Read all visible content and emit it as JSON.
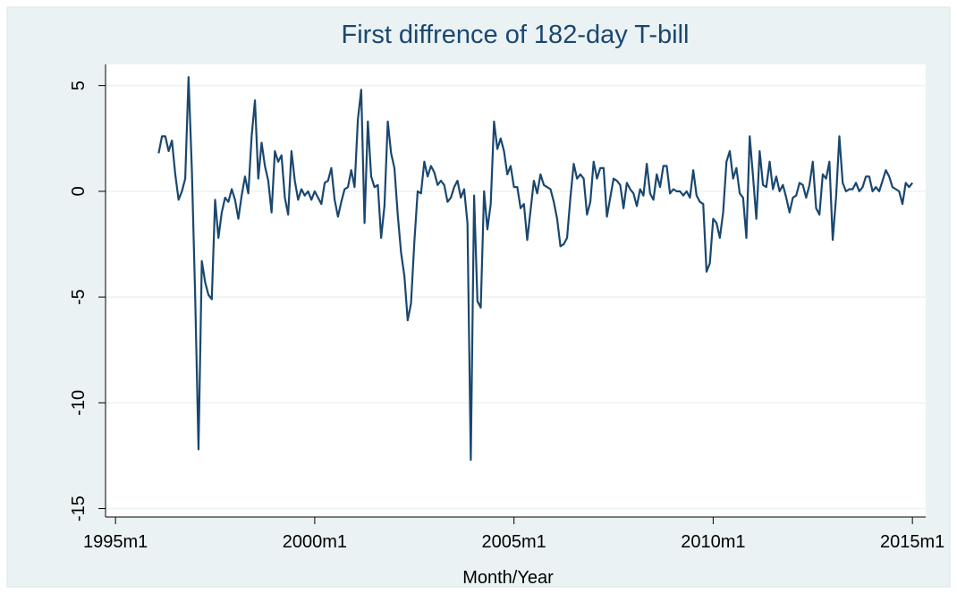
{
  "chart_data": {
    "type": "line",
    "title": "First diffrence of 182-day T-bill",
    "xlabel": "Month/Year",
    "color": "#1a476f",
    "grid": true,
    "xlim": [
      "1994m10",
      "2015m5"
    ],
    "xticks": [
      "1995m1",
      "2000m1",
      "2005m1",
      "2010m1",
      "2015m1"
    ],
    "ylim": [
      -15.4,
      6
    ],
    "yticks": [
      -15,
      -10,
      -5,
      0,
      5
    ],
    "x": [
      "1996m2",
      "1996m3",
      "1996m4",
      "1996m5",
      "1996m6",
      "1996m7",
      "1996m8",
      "1996m9",
      "1996m10",
      "1996m11",
      "1996m12",
      "1997m1",
      "1997m2",
      "1997m3",
      "1997m4",
      "1997m5",
      "1997m6",
      "1997m7",
      "1997m8",
      "1997m9",
      "1997m10",
      "1997m11",
      "1997m12",
      "1998m1",
      "1998m2",
      "1998m3",
      "1998m4",
      "1998m5",
      "1998m6",
      "1998m7",
      "1998m8",
      "1998m9",
      "1998m10",
      "1998m11",
      "1998m12",
      "1999m1",
      "1999m2",
      "1999m3",
      "1999m4",
      "1999m5",
      "1999m6",
      "1999m7",
      "1999m8",
      "1999m9",
      "1999m10",
      "1999m11",
      "1999m12",
      "2000m1",
      "2000m2",
      "2000m3",
      "2000m4",
      "2000m5",
      "2000m6",
      "2000m7",
      "2000m8",
      "2000m9",
      "2000m10",
      "2000m11",
      "2000m12",
      "2001m1",
      "2001m2",
      "2001m3",
      "2001m4",
      "2001m5",
      "2001m6",
      "2001m7",
      "2001m8",
      "2001m9",
      "2001m10",
      "2001m11",
      "2001m12",
      "2002m1",
      "2002m2",
      "2002m3",
      "2002m4",
      "2002m5",
      "2002m6",
      "2002m7",
      "2002m8",
      "2002m9",
      "2002m10",
      "2002m11",
      "2002m12",
      "2003m1",
      "2003m2",
      "2003m3",
      "2003m4",
      "2003m5",
      "2003m6",
      "2003m7",
      "2003m8",
      "2003m9",
      "2003m10",
      "2003m11",
      "2003m12",
      "2004m1",
      "2004m2",
      "2004m3",
      "2004m4",
      "2004m5",
      "2004m6",
      "2004m7",
      "2004m8",
      "2004m9",
      "2004m10",
      "2004m11",
      "2004m12",
      "2005m1",
      "2005m2",
      "2005m3",
      "2005m4",
      "2005m5",
      "2005m6",
      "2005m7",
      "2005m8",
      "2005m9",
      "2005m10",
      "2005m11",
      "2005m12",
      "2006m1",
      "2006m2",
      "2006m3",
      "2006m4",
      "2006m5",
      "2006m6",
      "2006m7",
      "2006m8",
      "2006m9",
      "2006m10",
      "2006m11",
      "2006m12",
      "2007m1",
      "2007m2",
      "2007m3",
      "2007m4",
      "2007m5",
      "2007m6",
      "2007m7",
      "2007m8",
      "2007m9",
      "2007m10",
      "2007m11",
      "2007m12",
      "2008m1",
      "2008m2",
      "2008m3",
      "2008m4",
      "2008m5",
      "2008m6",
      "2008m7",
      "2008m8",
      "2008m9",
      "2008m10",
      "2008m11",
      "2008m12",
      "2009m1",
      "2009m2",
      "2009m3",
      "2009m4",
      "2009m5",
      "2009m6",
      "2009m7",
      "2009m8",
      "2009m9",
      "2009m10",
      "2009m11",
      "2009m12",
      "2010m1",
      "2010m2",
      "2010m3",
      "2010m4",
      "2010m5",
      "2010m6",
      "2010m7",
      "2010m8",
      "2010m9",
      "2010m10",
      "2010m11",
      "2010m12",
      "2011m1",
      "2011m2",
      "2011m3",
      "2011m4",
      "2011m5",
      "2011m6",
      "2011m7",
      "2011m8",
      "2011m9",
      "2011m10",
      "2011m11",
      "2011m12",
      "2012m1",
      "2012m2",
      "2012m3",
      "2012m4",
      "2012m5",
      "2012m6",
      "2012m7",
      "2012m8",
      "2012m9",
      "2012m10",
      "2012m11",
      "2012m12",
      "2013m1",
      "2013m2",
      "2013m3",
      "2013m4",
      "2013m5",
      "2013m6",
      "2013m7",
      "2013m8",
      "2013m9",
      "2013m10",
      "2013m11",
      "2013m12",
      "2014m1",
      "2014m2",
      "2014m3",
      "2014m4",
      "2014m5",
      "2014m6",
      "2014m7",
      "2014m8",
      "2014m9",
      "2014m10",
      "2014m11",
      "2014m12",
      "2015m1"
    ],
    "values": [
      1.8,
      2.6,
      2.6,
      1.9,
      2.4,
      0.8,
      -0.4,
      0.0,
      0.6,
      5.4,
      1.0,
      -5.0,
      -12.2,
      -3.3,
      -4.3,
      -4.9,
      -5.1,
      -0.4,
      -2.2,
      -1.0,
      -0.3,
      -0.5,
      0.1,
      -0.4,
      -1.3,
      -0.2,
      0.7,
      -0.1,
      2.6,
      4.3,
      0.6,
      2.3,
      1.2,
      0.5,
      -1.0,
      1.9,
      1.4,
      1.7,
      -0.3,
      -1.1,
      1.9,
      0.5,
      -0.4,
      0.1,
      -0.2,
      0.0,
      -0.4,
      0.0,
      -0.3,
      -0.6,
      0.4,
      0.5,
      1.1,
      -0.4,
      -1.2,
      -0.5,
      0.1,
      0.2,
      1.0,
      0.2,
      3.4,
      4.8,
      -1.5,
      3.3,
      0.7,
      0.2,
      0.3,
      -2.2,
      -0.7,
      3.3,
      1.8,
      1.1,
      -1.1,
      -2.9,
      -4.0,
      -6.1,
      -5.3,
      -2.4,
      0.0,
      -0.1,
      1.4,
      0.7,
      1.2,
      0.9,
      0.3,
      0.5,
      0.3,
      -0.5,
      -0.3,
      0.2,
      0.5,
      -0.3,
      0.1,
      -1.5,
      -12.7,
      -0.2,
      -5.2,
      -5.5,
      0.0,
      -1.8,
      -0.6,
      3.3,
      2.0,
      2.5,
      1.9,
      0.8,
      1.2,
      0.2,
      0.2,
      -0.8,
      -0.6,
      -2.3,
      -0.9,
      0.5,
      -0.1,
      0.8,
      0.3,
      0.2,
      0.1,
      -0.5,
      -1.3,
      -2.6,
      -2.5,
      -2.2,
      -0.3,
      1.3,
      0.6,
      0.8,
      0.6,
      -1.1,
      -0.5,
      1.4,
      0.6,
      1.1,
      1.1,
      -1.2,
      -0.3,
      0.6,
      0.5,
      0.3,
      -0.8,
      0.4,
      0.1,
      -0.1,
      -0.7,
      0.1,
      -0.2,
      1.3,
      -0.1,
      -0.4,
      0.8,
      0.2,
      1.2,
      1.2,
      -0.1,
      0.1,
      0.0,
      0.0,
      -0.2,
      0.0,
      -0.3,
      1.0,
      -0.2,
      -0.5,
      -0.6,
      -3.8,
      -3.4,
      -1.3,
      -1.5,
      -2.2,
      -1.0,
      1.4,
      1.9,
      0.6,
      1.1,
      -0.1,
      -0.3,
      -2.2,
      2.6,
      0.7,
      -1.3,
      1.9,
      0.3,
      0.2,
      1.4,
      0.1,
      0.7,
      0.0,
      0.3,
      -0.3,
      -1.0,
      -0.3,
      -0.2,
      0.4,
      0.3,
      -0.3,
      0.3,
      1.4,
      -0.8,
      -1.1,
      0.8,
      0.6,
      1.4,
      -2.3,
      -0.3,
      2.6,
      0.4,
      0.0,
      0.1,
      0.1,
      0.4,
      0.0,
      0.2,
      0.7,
      0.7,
      0.0,
      0.2,
      0.0,
      0.5,
      1.0,
      0.7,
      0.2,
      0.1,
      0.0,
      -0.6,
      0.4,
      0.2,
      0.4
    ]
  }
}
